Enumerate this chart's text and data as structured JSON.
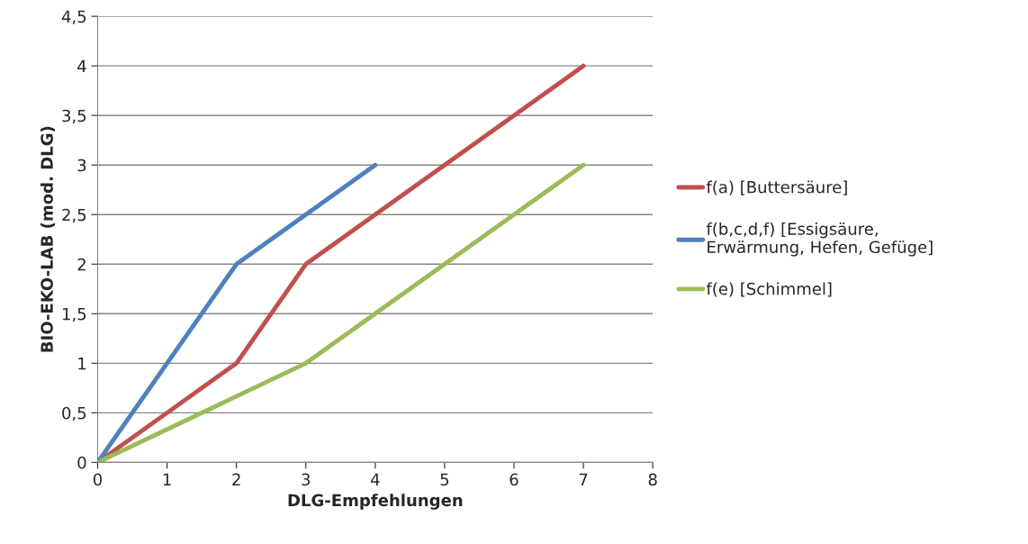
{
  "chart_data": {
    "type": "line",
    "xlabel": "DLG-Empfehlungen",
    "ylabel": "BIO-EKO-LAB (mod. DLG)",
    "series": [
      {
        "name": "f(a) [Buttersäure]",
        "color": "#c0504d",
        "x": [
          0,
          1,
          2,
          3,
          4,
          5,
          6,
          7
        ],
        "values": [
          0,
          0.5,
          1,
          2,
          2.5,
          3,
          3.5,
          4
        ]
      },
      {
        "name": "f(b,c,d,f) [Essigsäure,\nErwärmung, Hefen, Gefüge]",
        "color": "#4f81bd",
        "x": [
          0,
          1,
          2,
          3,
          4
        ],
        "values": [
          0,
          1,
          2,
          2.5,
          3
        ]
      },
      {
        "name": "f(e) [Schimmel]",
        "color": "#9bbb59",
        "x": [
          0,
          3,
          4,
          5,
          6,
          7
        ],
        "values": [
          0,
          1,
          1.5,
          2,
          2.5,
          3
        ]
      }
    ],
    "xlim": [
      0,
      8
    ],
    "xticks": [
      0,
      1,
      2,
      3,
      4,
      5,
      6,
      7,
      8
    ],
    "ylim": [
      0,
      4.5
    ],
    "yticks": [
      0,
      {
        "value": 0.5,
        "label": "0,5"
      },
      1,
      {
        "value": 1.5,
        "label": "1,5"
      },
      2,
      {
        "value": 2.5,
        "label": "2,5"
      },
      3,
      {
        "value": 3.5,
        "label": "3,5"
      },
      4,
      {
        "value": 4.5,
        "label": "4,5"
      }
    ],
    "grid": "y",
    "legend": "right",
    "marker": "none",
    "line_style": "solid"
  }
}
